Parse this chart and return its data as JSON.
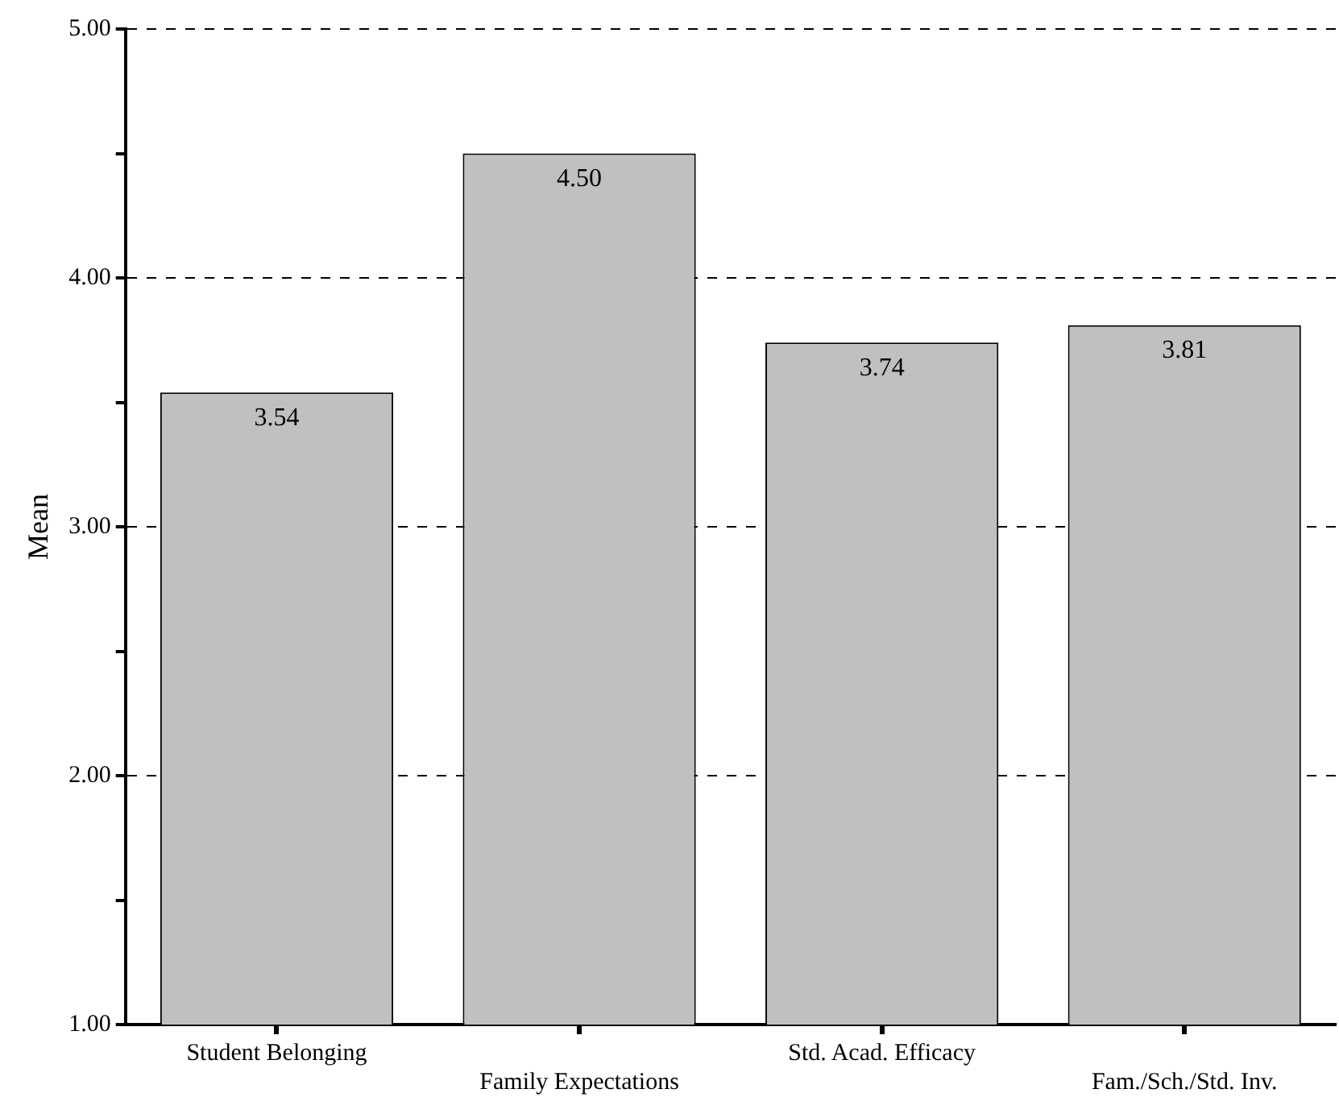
{
  "chart_data": {
    "type": "bar",
    "ylabel": "Mean",
    "categories": [
      "Student Belonging",
      "Family Expectations",
      "Std. Acad. Efficacy",
      "Fam./Sch./Std. Inv."
    ],
    "values": [
      3.54,
      4.5,
      3.74,
      3.81
    ],
    "color": "#c0c0c0",
    "value_labels": [
      "3.54",
      "4.50",
      "3.74",
      "3.81"
    ],
    "ylim": [
      1,
      5
    ],
    "yticks": [
      {
        "value": 1,
        "label": "1.00"
      },
      {
        "value": 1.5,
        "label": null
      },
      {
        "value": 2,
        "label": "2.00"
      },
      {
        "value": 2.5,
        "label": null
      },
      {
        "value": 3,
        "label": "3.00"
      },
      {
        "value": 3.5,
        "label": null
      },
      {
        "value": 4,
        "label": "4.00"
      },
      {
        "value": 4.5,
        "label": null
      },
      {
        "value": 5,
        "label": "5.00"
      }
    ],
    "grid": "y"
  }
}
